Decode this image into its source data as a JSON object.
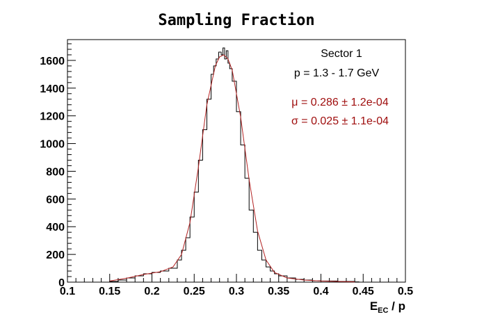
{
  "chart_data": {
    "type": "line",
    "title": "Sampling Fraction",
    "xlabel": "E",
    "xlabel_subscript": "EC",
    "xlabel_suffix": " / p",
    "ylabel": "",
    "xlim": [
      0.1,
      0.5
    ],
    "ylim": [
      0,
      1750
    ],
    "x_ticks": [
      "0.1",
      "0.15",
      "0.2",
      "0.25",
      "0.3",
      "0.35",
      "0.4",
      "0.45",
      "0.5"
    ],
    "y_ticks": [
      "0",
      "200",
      "400",
      "600",
      "800",
      "1000",
      "1200",
      "1400",
      "1600"
    ],
    "grid": false,
    "annotations": {
      "sector": "Sector 1",
      "momentum": "p = 1.3 - 1.7 GeV",
      "mu": "μ = 0.286 ± 1.2e-04",
      "sigma": "σ = 0.025 ± 1.1e-04"
    },
    "series": [
      {
        "style": "histogram-step",
        "color": "#000000",
        "x": [
          0.15,
          0.16,
          0.17,
          0.18,
          0.19,
          0.2,
          0.21,
          0.22,
          0.23,
          0.235,
          0.24,
          0.245,
          0.25,
          0.255,
          0.26,
          0.265,
          0.27,
          0.273,
          0.276,
          0.279,
          0.282,
          0.284,
          0.286,
          0.288,
          0.29,
          0.292,
          0.295,
          0.3,
          0.305,
          0.31,
          0.315,
          0.32,
          0.325,
          0.33,
          0.335,
          0.34,
          0.345,
          0.35,
          0.36,
          0.37,
          0.38,
          0.39,
          0.4,
          0.42,
          0.44
        ],
        "y": [
          5,
          15,
          30,
          45,
          60,
          70,
          80,
          100,
          160,
          230,
          320,
          470,
          650,
          880,
          1100,
          1320,
          1500,
          1560,
          1610,
          1660,
          1640,
          1690,
          1610,
          1670,
          1580,
          1540,
          1450,
          1230,
          990,
          750,
          520,
          360,
          230,
          160,
          110,
          80,
          60,
          45,
          30,
          20,
          15,
          10,
          8,
          5,
          2
        ]
      },
      {
        "style": "fit-curve",
        "color": "#b22222",
        "x": [
          0.15,
          0.17,
          0.19,
          0.21,
          0.225,
          0.235,
          0.245,
          0.255,
          0.265,
          0.275,
          0.28,
          0.285,
          0.29,
          0.295,
          0.305,
          0.315,
          0.325,
          0.335,
          0.345,
          0.36,
          0.38,
          0.4,
          0.44
        ],
        "y": [
          8,
          28,
          55,
          75,
          110,
          200,
          430,
          830,
          1280,
          1560,
          1625,
          1640,
          1610,
          1530,
          1190,
          740,
          370,
          160,
          70,
          30,
          15,
          8,
          2
        ]
      }
    ]
  }
}
